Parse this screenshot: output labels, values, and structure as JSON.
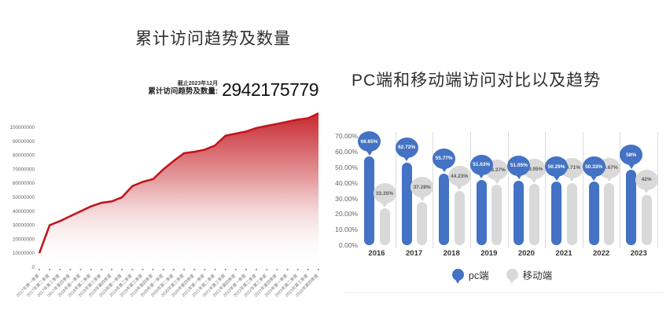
{
  "chart_data": [
    {
      "id": "cumulative-visits",
      "type": "area",
      "title": "累计访问趋势及数量",
      "annotation": {
        "date_note": "截止2023年12月",
        "label": "累计访问趋势及数量:",
        "value": "2942175779"
      },
      "x": [
        "2017年第一季度",
        "2017年第二季度",
        "2017年第三季度",
        "2017年第四季度",
        "2018年第一季度",
        "2018年第二季度",
        "2018年第三季度",
        "2018年第四季度",
        "2019年第一季度",
        "2019年第二季度",
        "2019年第三季度",
        "2019年第四季度",
        "2020年第一季度",
        "2020年第二季度",
        "2020年第三季度",
        "2020年第四季度",
        "2021年第一季度",
        "2021年第二季度",
        "2021年第三季度",
        "2021年第四季度",
        "2022年第一季度",
        "2022年第二季度",
        "2022年第三季度",
        "2022年第四季度",
        "2023年第一季度",
        "2023年第二季度",
        "2023年第三季度",
        "2023年第四季度"
      ],
      "values": [
        10000000,
        30000000,
        33000000,
        36500000,
        40000000,
        43500000,
        46000000,
        47000000,
        50000000,
        58000000,
        61000000,
        63000000,
        70000000,
        76000000,
        81500000,
        82500000,
        84000000,
        87000000,
        94000000,
        95500000,
        97000000,
        99500000,
        101000000,
        102500000,
        104000000,
        105500000,
        106500000,
        110000000
      ],
      "yticks": [
        "100000000",
        "90000000",
        "80000000",
        "70000000",
        "60000000",
        "50000000",
        "40000000",
        "30000000",
        "20000000",
        "10000000",
        "0"
      ],
      "ylim": [
        0,
        110000000
      ],
      "colors": {
        "line": "#c2171e"
      },
      "grid": false,
      "legend_position": "none"
    },
    {
      "id": "pc-vs-mobile",
      "type": "bar",
      "variant": "lollipop",
      "title": "PC端和移动端访问对比以及趋势",
      "categories": [
        "2016",
        "2017",
        "2018",
        "2019",
        "2020",
        "2021",
        "2022",
        "2023"
      ],
      "series": [
        {
          "name": "pc端",
          "color": "#4472c4",
          "values": [
            66.65,
            62.72,
            55.77,
            51.63,
            51.05,
            50.29,
            50.33,
            58
          ],
          "labels": [
            "66.65%",
            "62.72%",
            "55.77%",
            "51.63%",
            "51.05%",
            "50.29%",
            "50.33%",
            "58%"
          ]
        },
        {
          "name": "移动端",
          "color": "#d9d9d9",
          "values": [
            33.35,
            37.28,
            44.23,
            48.37,
            48.95,
            49.71,
            49.67,
            42
          ],
          "labels": [
            "33.35%",
            "37.28%",
            "44.23%",
            "48.37%",
            "48.95%",
            "49.71%",
            "49.67%",
            "42%"
          ]
        }
      ],
      "yticks": [
        "70.00%",
        "60.00%",
        "50.00%",
        "40.00%",
        "30.00%",
        "20.00%",
        "10.00%",
        "0.00%"
      ],
      "ylim": [
        0,
        70
      ],
      "grid": false,
      "legend_position": "bottom"
    }
  ]
}
